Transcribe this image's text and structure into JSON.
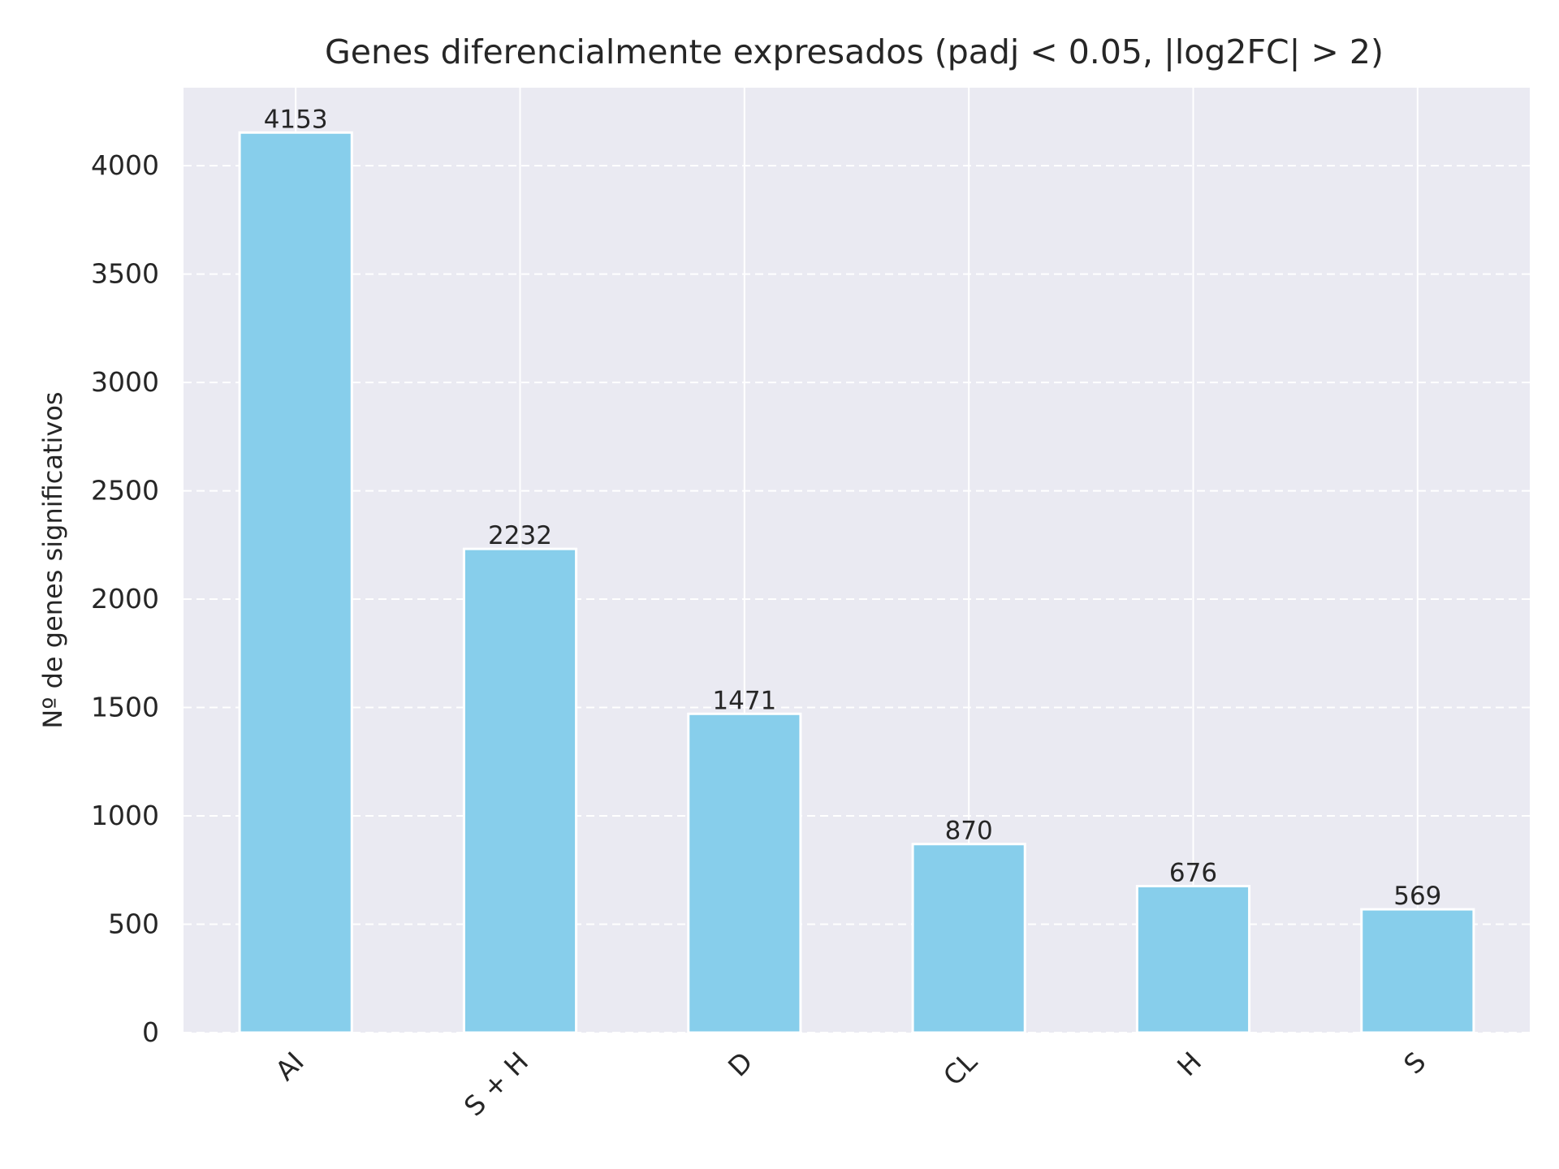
{
  "chart_data": {
    "type": "bar",
    "title": "Genes diferencialmente expresados (padj < 0.05, |log2FC| > 2)",
    "xlabel": "",
    "ylabel": "Nº de genes significativos",
    "categories": [
      "AI",
      "S + H",
      "D",
      "CL",
      "H",
      "S"
    ],
    "values": [
      4153,
      2232,
      1471,
      870,
      676,
      569
    ],
    "data_labels": [
      "4153",
      "2232",
      "1471",
      "870",
      "676",
      "569"
    ],
    "yticks": [
      0,
      500,
      1000,
      1500,
      2000,
      2500,
      3000,
      3500,
      4000
    ],
    "ylim": [
      0,
      4360
    ],
    "grid": true,
    "y_grid_style": "dashed",
    "x_tick_rotation": 45,
    "bar_color": "#87CEEB",
    "plot_background": "#EAEAF2",
    "grid_color": "#FFFFFF"
  }
}
